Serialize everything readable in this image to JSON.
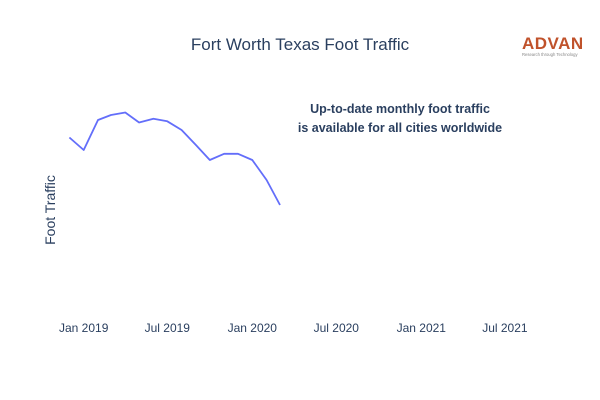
{
  "chart_data": {
    "type": "line",
    "title": "Fort Worth Texas Foot Traffic",
    "xlabel": "",
    "ylabel": "Foot Traffic",
    "x_tick_labels": [
      "Jan 2019",
      "Jul 2019",
      "Jan 2020",
      "Jul 2020",
      "Jan 2021",
      "Jul 2021"
    ],
    "xlim": [
      "2018-11-15",
      "2021-09-15"
    ],
    "y_tick_labels_shown": false,
    "ylim": [
      0,
      100
    ],
    "grid": false,
    "legend": "none",
    "series": [
      {
        "color": "#636efa",
        "points": [
          {
            "x": "2018-12-01",
            "y": 73
          },
          {
            "x": "2019-01-01",
            "y": 68
          },
          {
            "x": "2019-02-01",
            "y": 80
          },
          {
            "x": "2019-03-01",
            "y": 82
          },
          {
            "x": "2019-04-01",
            "y": 83
          },
          {
            "x": "2019-05-01",
            "y": 79
          },
          {
            "x": "2019-06-01",
            "y": 80.5
          },
          {
            "x": "2019-07-01",
            "y": 79.5
          },
          {
            "x": "2019-08-01",
            "y": 76
          },
          {
            "x": "2019-09-01",
            "y": 70
          },
          {
            "x": "2019-10-01",
            "y": 64
          },
          {
            "x": "2019-11-01",
            "y": 66.5
          },
          {
            "x": "2019-12-01",
            "y": 66.5
          },
          {
            "x": "2020-01-01",
            "y": 64
          },
          {
            "x": "2020-02-01",
            "y": 56
          },
          {
            "x": "2020-03-01",
            "y": 46
          }
        ]
      }
    ],
    "annotation": {
      "lines": [
        "Up-to-date monthly foot traffic",
        "is available for all cities worldwide"
      ]
    }
  },
  "logo": {
    "word": "ADVAN",
    "tagline": "Research through Technology",
    "color": "#c0522b"
  }
}
